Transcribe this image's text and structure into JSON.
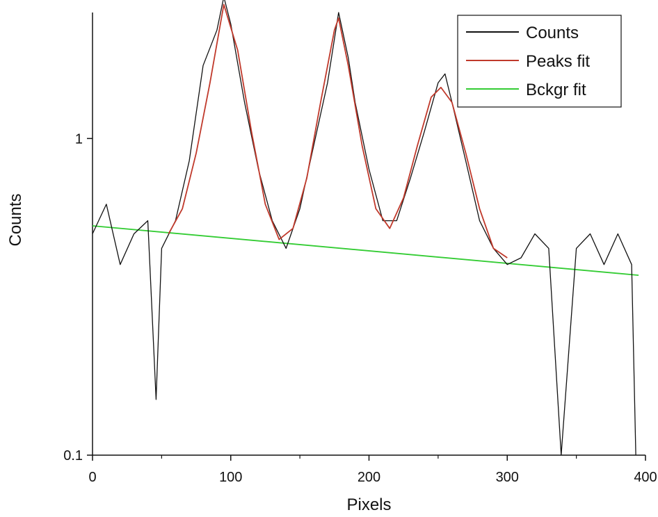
{
  "chart_data": {
    "type": "line",
    "title": "",
    "xlabel": "Pixels",
    "ylabel": "Counts",
    "xlim": [
      0,
      400
    ],
    "ylim": [
      0.1,
      2.5
    ],
    "y_scale": "log",
    "x_ticks": [
      0,
      100,
      200,
      300,
      400
    ],
    "x_tick_labels": [
      "0",
      "100",
      "200",
      "300",
      "400"
    ],
    "y_ticks": [
      0.1,
      1
    ],
    "y_tick_labels": [
      "0.1",
      "1"
    ],
    "legend": {
      "position": "top-right",
      "entries": [
        "Counts",
        "Peaks fit",
        "Bckgr fit"
      ]
    },
    "colors": {
      "Counts": "#111111",
      "Peaks fit": "#c0392b",
      "Bckgr fit": "#33cc33"
    },
    "grid": false,
    "series": [
      {
        "name": "Counts",
        "x": [
          0,
          10,
          20,
          30,
          40,
          46,
          50,
          60,
          70,
          80,
          90,
          95,
          100,
          110,
          120,
          130,
          140,
          150,
          160,
          170,
          178,
          185,
          190,
          200,
          210,
          220,
          230,
          240,
          250,
          255,
          260,
          270,
          280,
          290,
          300,
          310,
          320,
          330,
          339,
          350,
          360,
          370,
          380,
          390,
          393
        ],
        "y": [
          0.5,
          0.62,
          0.4,
          0.5,
          0.55,
          0.15,
          0.45,
          0.55,
          0.85,
          1.7,
          2.2,
          2.8,
          2.3,
          1.3,
          0.8,
          0.55,
          0.45,
          0.6,
          0.95,
          1.5,
          2.5,
          1.8,
          1.3,
          0.8,
          0.55,
          0.55,
          0.75,
          1.05,
          1.5,
          1.6,
          1.3,
          0.85,
          0.55,
          0.45,
          0.4,
          0.42,
          0.5,
          0.45,
          0.1,
          0.45,
          0.5,
          0.4,
          0.5,
          0.4,
          0.1
        ]
      },
      {
        "name": "Peaks fit",
        "x": [
          55,
          65,
          75,
          85,
          95,
          105,
          115,
          125,
          135,
          145,
          155,
          165,
          175,
          178,
          185,
          195,
          205,
          215,
          225,
          235,
          245,
          252,
          260,
          270,
          280,
          290,
          300
        ],
        "y": [
          0.5,
          0.6,
          0.9,
          1.5,
          2.65,
          1.9,
          1.05,
          0.62,
          0.48,
          0.52,
          0.75,
          1.3,
          2.2,
          2.4,
          1.7,
          0.95,
          0.6,
          0.52,
          0.65,
          0.95,
          1.35,
          1.45,
          1.3,
          0.9,
          0.6,
          0.45,
          0.42
        ]
      },
      {
        "name": "Bckgr fit",
        "x": [
          0,
          395
        ],
        "y": [
          0.53,
          0.37
        ]
      }
    ]
  }
}
